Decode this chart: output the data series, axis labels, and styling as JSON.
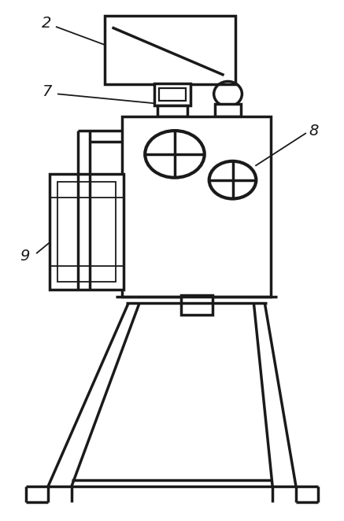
{
  "bg_color": "#ffffff",
  "line_color": "#1a1a1a",
  "lw": 2.5,
  "lw_thin": 1.3,
  "label_fontsize": 14,
  "label_style": "italic"
}
